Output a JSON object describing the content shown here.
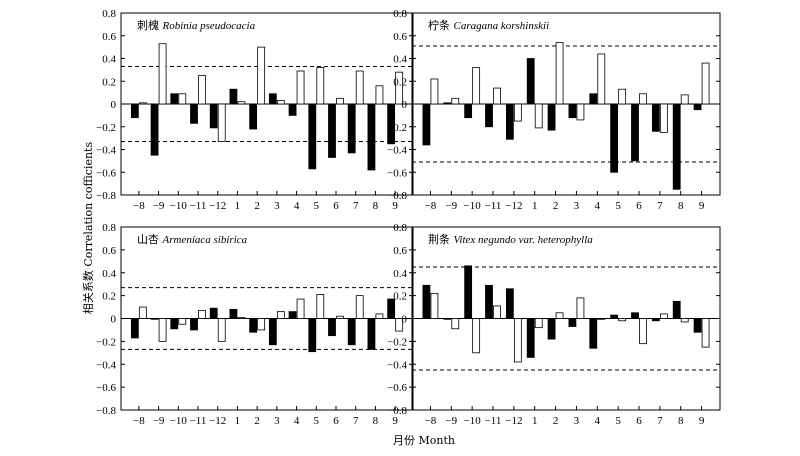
{
  "figure": {
    "ylabel": "相关系数 Correlation cofficients",
    "xlabel": "月份 Month",
    "colors": {
      "positive_bar": "#000000",
      "negative_bar": "#ffffff",
      "threshold_line": "#000000"
    }
  },
  "chart_data": [
    {
      "type": "bar",
      "title_cn": "刺槐",
      "title_latin": "Robinia pseudocacia",
      "categories": [
        "−8",
        "−9",
        "−10",
        "−11",
        "−12",
        "1",
        "2",
        "3",
        "4",
        "5",
        "6",
        "7",
        "8",
        "9"
      ],
      "series": [
        {
          "fill": "black",
          "values": [
            -0.12,
            -0.45,
            0.09,
            -0.17,
            -0.21,
            0.13,
            -0.22,
            0.09,
            -0.1,
            -0.57,
            -0.47,
            -0.43,
            -0.58,
            -0.35
          ]
        },
        {
          "fill": "white",
          "values": [
            0.01,
            0.53,
            0.09,
            0.25,
            -0.33,
            0.02,
            0.5,
            0.03,
            0.29,
            0.32,
            0.05,
            0.29,
            0.16,
            0.28
          ]
        }
      ],
      "ylim": [
        -0.8,
        0.8
      ],
      "yticks": [
        "−0.8",
        "−0.6",
        "−0.4",
        "−0.2",
        "0",
        "0.2",
        "0.4",
        "0.6",
        "0.8"
      ],
      "thresholds": [
        0.33,
        -0.33
      ],
      "grid": false
    },
    {
      "type": "bar",
      "title_cn": "柠条",
      "title_latin": "Caragana korshinskii",
      "categories": [
        "−8",
        "−9",
        "−10",
        "−11",
        "−12",
        "1",
        "2",
        "3",
        "4",
        "5",
        "6",
        "7",
        "8",
        "9"
      ],
      "series": [
        {
          "fill": "black",
          "values": [
            -0.36,
            0.01,
            -0.12,
            -0.2,
            -0.31,
            0.4,
            -0.23,
            -0.12,
            0.09,
            -0.6,
            -0.5,
            -0.24,
            -0.75,
            -0.05
          ]
        },
        {
          "fill": "white",
          "values": [
            0.22,
            0.05,
            0.32,
            0.14,
            -0.15,
            -0.21,
            0.54,
            -0.14,
            0.44,
            0.13,
            0.09,
            -0.25,
            0.08,
            0.36
          ]
        }
      ],
      "ylim": [
        -0.8,
        0.8
      ],
      "yticks": [
        "−0.8",
        "−0.6",
        "−0.4",
        "−0.2",
        "0",
        "0.2",
        "0.4",
        "0.6",
        "0.8"
      ],
      "thresholds": [
        0.51,
        -0.51
      ],
      "grid": false
    },
    {
      "type": "bar",
      "title_cn": "山杏",
      "title_latin": "Armeniaca sibirica",
      "categories": [
        "−8",
        "−9",
        "−10",
        "−11",
        "−12",
        "1",
        "2",
        "3",
        "4",
        "5",
        "6",
        "7",
        "8",
        "9"
      ],
      "series": [
        {
          "fill": "black",
          "values": [
            -0.17,
            0.0,
            -0.09,
            -0.1,
            0.09,
            0.08,
            -0.12,
            -0.23,
            0.06,
            -0.29,
            -0.15,
            -0.23,
            -0.27,
            0.17
          ]
        },
        {
          "fill": "white",
          "values": [
            0.1,
            -0.2,
            -0.05,
            0.07,
            -0.2,
            0.01,
            -0.1,
            0.06,
            0.17,
            0.21,
            0.02,
            0.2,
            0.04,
            -0.11
          ]
        }
      ],
      "ylim": [
        -0.8,
        0.8
      ],
      "yticks": [
        "−0.8",
        "−0.6",
        "−0.4",
        "−0.2",
        "0",
        "0.2",
        "0.4",
        "0.6",
        "0.8"
      ],
      "thresholds": [
        0.27,
        -0.27
      ],
      "grid": false
    },
    {
      "type": "bar",
      "title_cn": "荆条",
      "title_latin": "Vitex negundo var. heterophylla",
      "categories": [
        "−8",
        "−9",
        "−10",
        "−11",
        "−12",
        "1",
        "2",
        "3",
        "4",
        "5",
        "6",
        "7",
        "8",
        "9"
      ],
      "series": [
        {
          "fill": "black",
          "values": [
            0.29,
            0.0,
            0.46,
            0.29,
            0.26,
            -0.34,
            -0.18,
            -0.07,
            -0.26,
            0.03,
            0.05,
            -0.02,
            0.15,
            -0.12
          ]
        },
        {
          "fill": "white",
          "values": [
            0.22,
            -0.09,
            -0.3,
            0.11,
            -0.38,
            -0.08,
            0.05,
            0.18,
            0.0,
            -0.02,
            -0.22,
            0.04,
            -0.03,
            -0.25
          ]
        }
      ],
      "ylim": [
        -0.8,
        0.8
      ],
      "yticks": [
        "−0.8",
        "−0.6",
        "−0.4",
        "−0.2",
        "0",
        "0.2",
        "0.4",
        "0.6",
        "0.8"
      ],
      "thresholds": [
        0.45,
        -0.45
      ],
      "grid": false
    }
  ]
}
